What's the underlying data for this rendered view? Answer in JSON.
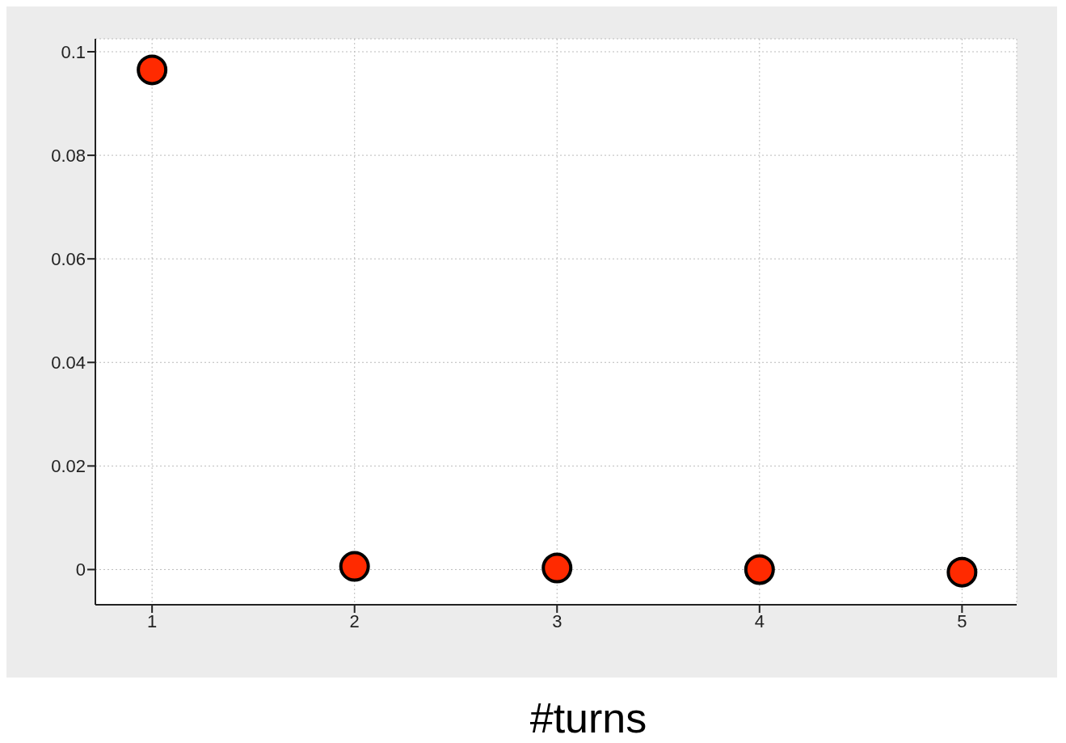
{
  "chart_data": {
    "type": "scatter",
    "xlabel": "#turns",
    "x": [
      1,
      2,
      3,
      4,
      5
    ],
    "series": [
      {
        "color": "#ff2a00",
        "values": [
          0.0965,
          0.0006,
          0.0003,
          0,
          -0.0005
        ]
      }
    ],
    "xlim": [
      0.72,
      5.27
    ],
    "xticks": [
      1,
      2,
      3,
      4,
      5
    ],
    "ylim": [
      -0.0068,
      0.1025
    ],
    "yticks": [
      0,
      0.02,
      0.04,
      0.06,
      0.08,
      0.1
    ],
    "grid": true,
    "marker": "circle"
  }
}
